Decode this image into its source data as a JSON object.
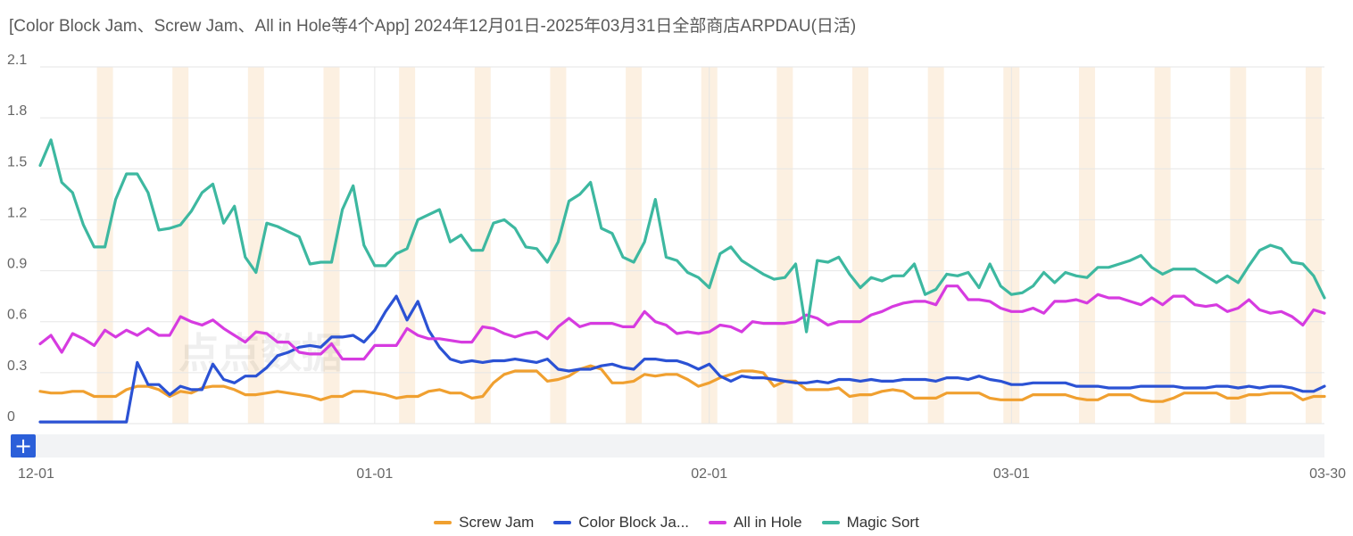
{
  "title": "[Color Block Jam、Screw Jam、All in Hole等4个App] 2024年12月01日-2025年03月31日全部商店ARPDAU(日活)",
  "watermark": "点点数据",
  "zoom_control": "+",
  "chart_data": {
    "type": "line",
    "title": "[Color Block Jam、Screw Jam、All in Hole等4个App] 2024年12月01日-2025年03月31日全部商店ARPDAU(日活)",
    "x_start": "2024-12-01",
    "x_end": "2025-03-30",
    "num_points": 120,
    "x_tick_labels": [
      {
        "label": "12-01",
        "index": 0
      },
      {
        "label": "01-01",
        "index": 31
      },
      {
        "label": "02-01",
        "index": 62
      },
      {
        "label": "03-01",
        "index": 90
      },
      {
        "label": "03-30",
        "index": 119
      }
    ],
    "y_ticks": [
      "0",
      "0.3",
      "0.6",
      "0.9",
      "1.2",
      "1.5",
      "1.8",
      "2.1"
    ],
    "ylim": [
      0,
      2.1
    ],
    "weekend_start_index": 6,
    "series": [
      {
        "name": "Screw Jam",
        "legend_label": "Screw Jam",
        "color": "#f0a030",
        "values": [
          0.19,
          0.18,
          0.18,
          0.19,
          0.19,
          0.16,
          0.16,
          0.16,
          0.2,
          0.22,
          0.22,
          0.2,
          0.16,
          0.19,
          0.18,
          0.21,
          0.22,
          0.22,
          0.2,
          0.17,
          0.17,
          0.18,
          0.19,
          0.18,
          0.17,
          0.16,
          0.14,
          0.16,
          0.16,
          0.19,
          0.19,
          0.18,
          0.17,
          0.15,
          0.16,
          0.16,
          0.19,
          0.2,
          0.18,
          0.18,
          0.15,
          0.16,
          0.24,
          0.29,
          0.31,
          0.31,
          0.31,
          0.25,
          0.26,
          0.28,
          0.32,
          0.34,
          0.32,
          0.24,
          0.24,
          0.25,
          0.29,
          0.28,
          0.29,
          0.29,
          0.26,
          0.22,
          0.24,
          0.27,
          0.29,
          0.31,
          0.31,
          0.3,
          0.22,
          0.25,
          0.25,
          0.2,
          0.2,
          0.2,
          0.21,
          0.16,
          0.17,
          0.17,
          0.19,
          0.2,
          0.19,
          0.15,
          0.15,
          0.15,
          0.18,
          0.18,
          0.18,
          0.18,
          0.15,
          0.14,
          0.14,
          0.14,
          0.17,
          0.17,
          0.17,
          0.17,
          0.15,
          0.14,
          0.14,
          0.17,
          0.17,
          0.17,
          0.14,
          0.13,
          0.13,
          0.15,
          0.18,
          0.18,
          0.18,
          0.18,
          0.15,
          0.15,
          0.17,
          0.17,
          0.18,
          0.18,
          0.18,
          0.14,
          0.16,
          0.16
        ]
      },
      {
        "name": "Color Block Jam",
        "legend_label": "Color Block Ja...",
        "color": "#2b52d4",
        "values": [
          0.01,
          0.01,
          0.01,
          0.01,
          0.01,
          0.01,
          0.01,
          0.01,
          0.01,
          0.36,
          0.23,
          0.23,
          0.17,
          0.22,
          0.2,
          0.2,
          0.35,
          0.26,
          0.24,
          0.28,
          0.28,
          0.33,
          0.4,
          0.42,
          0.45,
          0.46,
          0.45,
          0.51,
          0.51,
          0.52,
          0.48,
          0.55,
          0.66,
          0.75,
          0.61,
          0.72,
          0.55,
          0.45,
          0.38,
          0.36,
          0.37,
          0.36,
          0.37,
          0.37,
          0.38,
          0.37,
          0.36,
          0.38,
          0.32,
          0.31,
          0.32,
          0.32,
          0.34,
          0.35,
          0.33,
          0.32,
          0.38,
          0.38,
          0.37,
          0.37,
          0.35,
          0.32,
          0.35,
          0.28,
          0.25,
          0.28,
          0.27,
          0.27,
          0.26,
          0.25,
          0.24,
          0.24,
          0.25,
          0.24,
          0.26,
          0.26,
          0.25,
          0.26,
          0.25,
          0.25,
          0.26,
          0.26,
          0.26,
          0.25,
          0.27,
          0.27,
          0.26,
          0.28,
          0.26,
          0.25,
          0.23,
          0.23,
          0.24,
          0.24,
          0.24,
          0.24,
          0.22,
          0.22,
          0.22,
          0.21,
          0.21,
          0.21,
          0.22,
          0.22,
          0.22,
          0.22,
          0.21,
          0.21,
          0.21,
          0.22,
          0.22,
          0.21,
          0.22,
          0.21,
          0.22,
          0.22,
          0.21,
          0.19,
          0.19,
          0.22
        ]
      },
      {
        "name": "All in Hole",
        "legend_label": "All in Hole",
        "color": "#d63be0",
        "values": [
          0.47,
          0.52,
          0.42,
          0.53,
          0.5,
          0.46,
          0.55,
          0.51,
          0.55,
          0.52,
          0.56,
          0.52,
          0.52,
          0.63,
          0.6,
          0.58,
          0.61,
          0.56,
          0.52,
          0.48,
          0.54,
          0.53,
          0.48,
          0.48,
          0.42,
          0.41,
          0.41,
          0.47,
          0.38,
          0.38,
          0.38,
          0.46,
          0.46,
          0.46,
          0.56,
          0.52,
          0.5,
          0.5,
          0.49,
          0.48,
          0.48,
          0.57,
          0.56,
          0.53,
          0.51,
          0.53,
          0.54,
          0.5,
          0.57,
          0.62,
          0.57,
          0.59,
          0.59,
          0.59,
          0.57,
          0.57,
          0.66,
          0.6,
          0.58,
          0.53,
          0.54,
          0.53,
          0.54,
          0.58,
          0.57,
          0.54,
          0.6,
          0.59,
          0.59,
          0.59,
          0.6,
          0.64,
          0.62,
          0.58,
          0.6,
          0.6,
          0.6,
          0.64,
          0.66,
          0.69,
          0.71,
          0.72,
          0.72,
          0.7,
          0.81,
          0.81,
          0.73,
          0.73,
          0.72,
          0.68,
          0.66,
          0.66,
          0.68,
          0.65,
          0.72,
          0.72,
          0.73,
          0.71,
          0.76,
          0.74,
          0.74,
          0.72,
          0.7,
          0.74,
          0.7,
          0.75,
          0.75,
          0.7,
          0.69,
          0.7,
          0.66,
          0.68,
          0.73,
          0.67,
          0.65,
          0.66,
          0.63,
          0.58,
          0.67,
          0.65
        ]
      },
      {
        "name": "Magic Sort",
        "legend_label": "Magic Sort",
        "color": "#3db8a0",
        "values": [
          1.52,
          1.67,
          1.42,
          1.36,
          1.17,
          1.04,
          1.04,
          1.32,
          1.47,
          1.47,
          1.36,
          1.14,
          1.15,
          1.17,
          1.25,
          1.36,
          1.41,
          1.18,
          1.28,
          0.98,
          0.89,
          1.18,
          1.16,
          1.13,
          1.1,
          0.94,
          0.95,
          0.95,
          1.26,
          1.4,
          1.05,
          0.93,
          0.93,
          1.0,
          1.03,
          1.2,
          1.23,
          1.26,
          1.07,
          1.11,
          1.02,
          1.02,
          1.18,
          1.2,
          1.15,
          1.04,
          1.03,
          0.95,
          1.07,
          1.31,
          1.35,
          1.42,
          1.15,
          1.12,
          0.98,
          0.95,
          1.07,
          1.32,
          0.98,
          0.96,
          0.89,
          0.86,
          0.8,
          1.0,
          1.04,
          0.96,
          0.92,
          0.88,
          0.85,
          0.86,
          0.94,
          0.54,
          0.96,
          0.95,
          0.98,
          0.88,
          0.8,
          0.86,
          0.84,
          0.87,
          0.87,
          0.94,
          0.76,
          0.79,
          0.88,
          0.87,
          0.89,
          0.8,
          0.94,
          0.81,
          0.76,
          0.77,
          0.81,
          0.89,
          0.83,
          0.89,
          0.87,
          0.86,
          0.92,
          0.92,
          0.94,
          0.96,
          0.99,
          0.92,
          0.88,
          0.91,
          0.91,
          0.91,
          0.87,
          0.83,
          0.87,
          0.83,
          0.93,
          1.02,
          1.05,
          1.03,
          0.95,
          0.94,
          0.87,
          0.74
        ]
      }
    ]
  }
}
